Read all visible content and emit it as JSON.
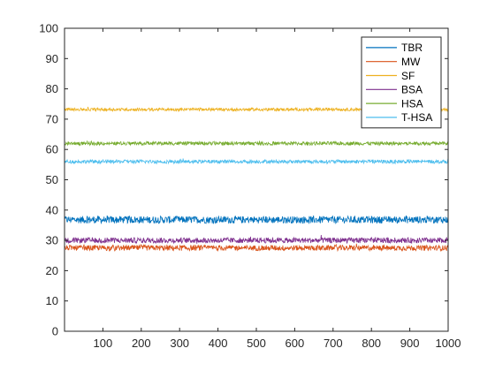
{
  "chart_data": {
    "type": "line",
    "title": "",
    "xlabel": "",
    "ylabel": "",
    "xlim": [
      0,
      1000
    ],
    "ylim": [
      0,
      100
    ],
    "xticks": [
      100,
      200,
      300,
      400,
      500,
      600,
      700,
      800,
      900,
      1000
    ],
    "yticks": [
      0,
      10,
      20,
      30,
      40,
      50,
      60,
      70,
      80,
      90,
      100
    ],
    "x_range": [
      1,
      1000
    ],
    "grid": false,
    "legend_position": "top-right",
    "series": [
      {
        "name": "TBR",
        "color": "#0072BD",
        "mean": 36.8,
        "noise_amplitude": 1.2
      },
      {
        "name": "MW",
        "color": "#D95319",
        "mean": 27.5,
        "noise_amplitude": 0.9
      },
      {
        "name": "SF",
        "color": "#EDB120",
        "mean": 73.2,
        "noise_amplitude": 0.5
      },
      {
        "name": "BSA",
        "color": "#7E2F8E",
        "mean": 30.0,
        "noise_amplitude": 0.9
      },
      {
        "name": "HSA",
        "color": "#77AC30",
        "mean": 62.0,
        "noise_amplitude": 0.6
      },
      {
        "name": "T-HSA",
        "color": "#4DBEEE",
        "mean": 56.0,
        "noise_amplitude": 0.6
      }
    ]
  }
}
